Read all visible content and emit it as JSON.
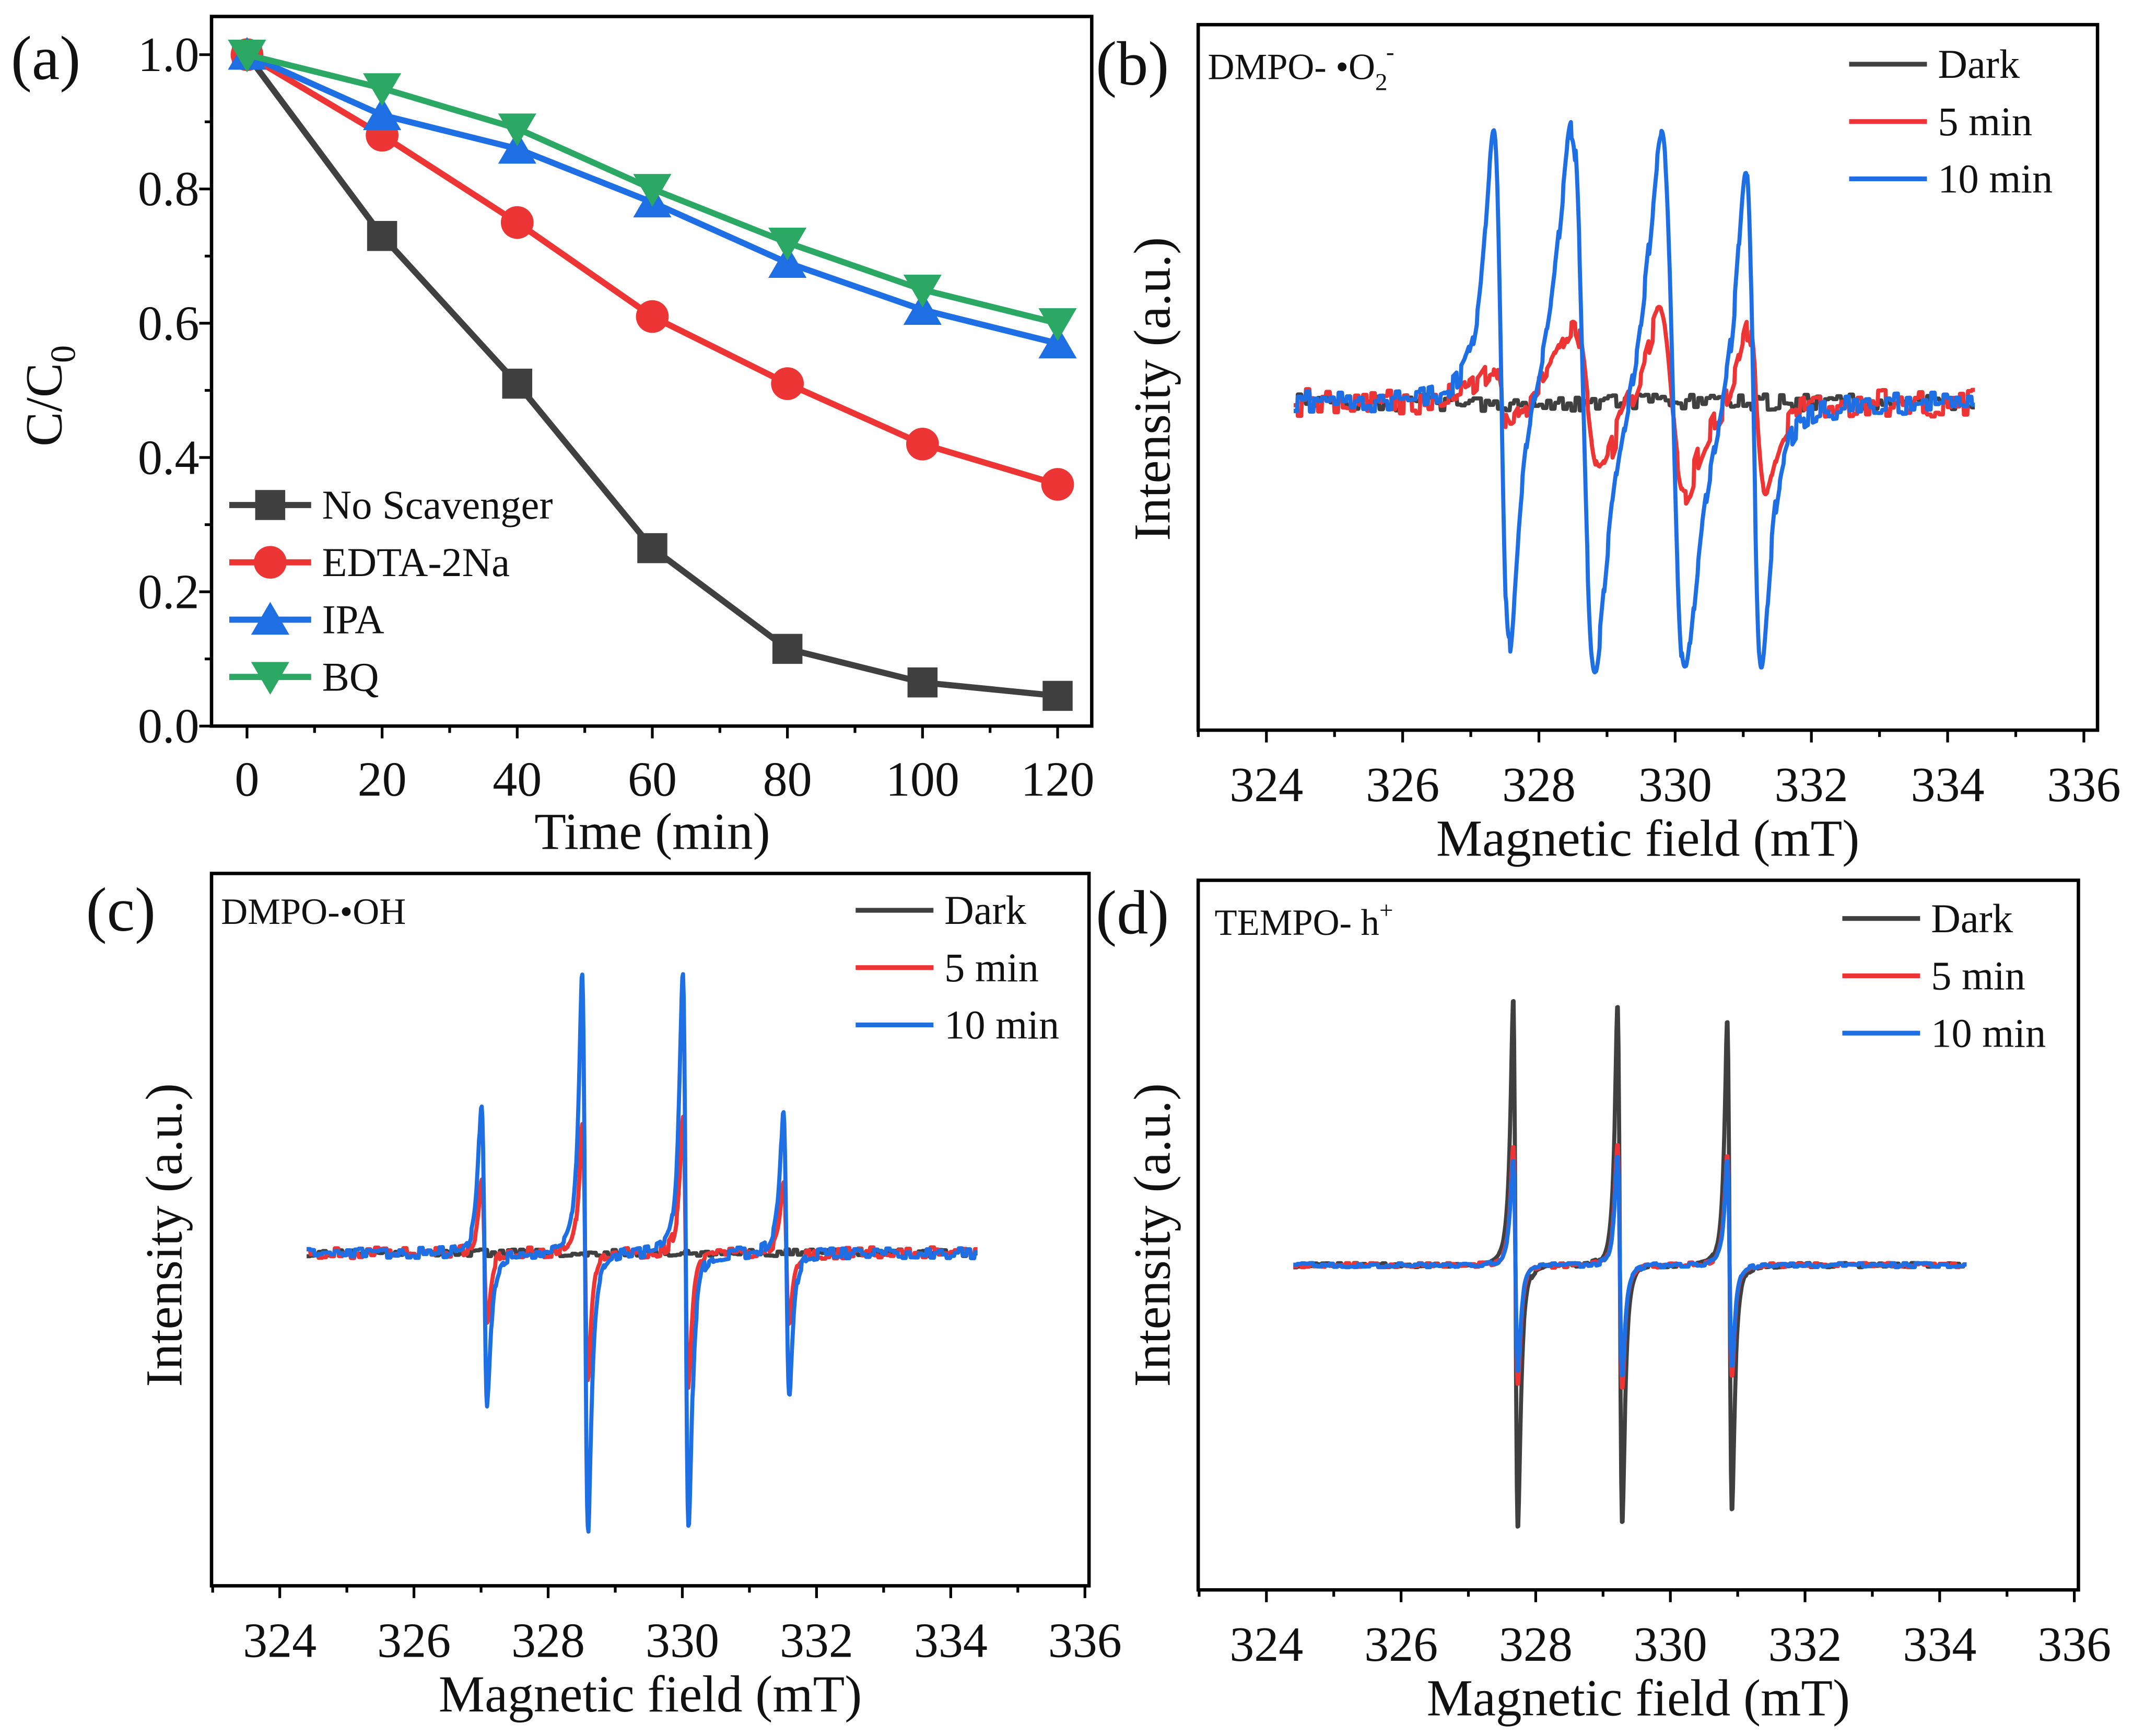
{
  "colors": {
    "dark": "#404040",
    "red": "#ee3535",
    "blue": "#1e6fe3",
    "green": "#2aa864",
    "axis": "#000000"
  },
  "chart_data": [
    {
      "panel": "(a)",
      "type": "line",
      "xlabel": "Time (min)",
      "ylabel": {
        "main": "C/C",
        "sub": "0"
      },
      "x": [
        0,
        20,
        40,
        60,
        80,
        100,
        120
      ],
      "xlim": [
        -5,
        125
      ],
      "ylim": [
        0.0,
        1.05
      ],
      "xticks": [
        "0",
        "20",
        "40",
        "60",
        "80",
        "100",
        "120"
      ],
      "yticks": [
        "0.0",
        "0.2",
        "0.4",
        "0.6",
        "0.8",
        "1.0"
      ],
      "legend_position": "bottom-left",
      "grid": false,
      "series": [
        {
          "name": "No Scavenger",
          "marker": "square",
          "color": "#404040",
          "values": [
            1.0,
            0.73,
            0.51,
            0.265,
            0.115,
            0.065,
            0.045
          ]
        },
        {
          "name": "EDTA-2Na",
          "marker": "circle",
          "color": "#ee3535",
          "values": [
            1.0,
            0.88,
            0.75,
            0.61,
            0.51,
            0.42,
            0.36
          ]
        },
        {
          "name": "IPA",
          "marker": "triangle-up",
          "color": "#1e6fe3",
          "values": [
            1.0,
            0.91,
            0.86,
            0.78,
            0.69,
            0.62,
            0.57
          ]
        },
        {
          "name": "BQ",
          "marker": "triangle-down",
          "color": "#2aa864",
          "values": [
            1.0,
            0.95,
            0.89,
            0.8,
            0.72,
            0.65,
            0.6
          ]
        }
      ]
    },
    {
      "panel": "(b)",
      "type": "line",
      "annotation": {
        "main": "DMPO- •O",
        "sub": "2",
        "sup": "-"
      },
      "xlabel": "Magnetic field (mT)",
      "ylabel": "Intensity (a.u.)",
      "xlim": [
        323,
        336
      ],
      "xticks": [
        "324",
        "326",
        "328",
        "330",
        "332",
        "334",
        "336"
      ],
      "data_range": [
        324.4,
        334.4
      ],
      "legend_position": "top-right",
      "series": [
        {
          "name": "Dark",
          "color": "#404040",
          "noise": 0.03,
          "lines": []
        },
        {
          "name": "5 min",
          "color": "#ee3535",
          "noise": 0.05,
          "lines": [
            {
              "center": 327.45,
              "width": 0.25,
              "amplitude": 0.12
            },
            {
              "center": 328.7,
              "width": 0.35,
              "amplitude": 0.28
            },
            {
              "center": 329.95,
              "width": 0.33,
              "amplitude": 0.33
            },
            {
              "center": 331.2,
              "width": 0.22,
              "amplitude": 0.3
            }
          ]
        },
        {
          "name": "10 min",
          "color": "#1e6fe3",
          "noise": 0.04,
          "lines": [
            {
              "center": 327.45,
              "width": 0.2,
              "amplitude": 0.95
            },
            {
              "center": 328.65,
              "width": 0.3,
              "amplitude": 1.0
            },
            {
              "center": 329.97,
              "width": 0.3,
              "amplitude": 1.0
            },
            {
              "center": 331.15,
              "width": 0.2,
              "amplitude": 0.92
            }
          ]
        }
      ]
    },
    {
      "panel": "(c)",
      "type": "line",
      "annotation": {
        "main": "DMPO-•OH",
        "sub": "",
        "sup": ""
      },
      "xlabel": "Magnetic field (mT)",
      "ylabel": "Intensity (a.u.)",
      "xlim": [
        323,
        336
      ],
      "xticks": [
        "324",
        "326",
        "328",
        "330",
        "332",
        "334",
        "336"
      ],
      "data_range": [
        324.4,
        334.4
      ],
      "legend_position": "top-right",
      "series": [
        {
          "name": "Dark",
          "color": "#404040",
          "noise": 0.012,
          "lines": []
        },
        {
          "name": "5 min",
          "color": "#ee3535",
          "noise": 0.02,
          "lines": [
            {
              "center": 327.05,
              "width": 0.07,
              "amplitude": 0.25
            },
            {
              "center": 328.55,
              "width": 0.07,
              "amplitude": 0.47
            },
            {
              "center": 330.05,
              "width": 0.07,
              "amplitude": 0.47
            },
            {
              "center": 331.55,
              "width": 0.07,
              "amplitude": 0.25
            }
          ]
        },
        {
          "name": "10 min",
          "color": "#1e6fe3",
          "noise": 0.02,
          "lines": [
            {
              "center": 327.05,
              "width": 0.075,
              "amplitude": 0.54
            },
            {
              "center": 328.55,
              "width": 0.075,
              "amplitude": 1.0
            },
            {
              "center": 330.05,
              "width": 0.075,
              "amplitude": 1.0
            },
            {
              "center": 331.55,
              "width": 0.075,
              "amplitude": 0.52
            }
          ]
        }
      ]
    },
    {
      "panel": "(d)",
      "type": "line",
      "annotation": {
        "main": "TEMPO- h",
        "sub": "",
        "sup": "+"
      },
      "xlabel": "Magnetic field (mT)",
      "ylabel": "Intensity (a.u.)",
      "xlim": [
        323,
        336
      ],
      "xticks": [
        "324",
        "326",
        "328",
        "330",
        "332",
        "334",
        "336"
      ],
      "data_range": [
        324.4,
        334.4
      ],
      "legend_position": "top-right",
      "series": [
        {
          "name": "Dark",
          "color": "#404040",
          "noise": 0.008,
          "lines": [
            {
              "center": 327.7,
              "width": 0.06,
              "amplitude": 1.0
            },
            {
              "center": 329.25,
              "width": 0.06,
              "amplitude": 0.98
            },
            {
              "center": 330.88,
              "width": 0.06,
              "amplitude": 0.93
            }
          ]
        },
        {
          "name": "5 min",
          "color": "#ee3535",
          "noise": 0.008,
          "lines": [
            {
              "center": 327.7,
              "width": 0.06,
              "amplitude": 0.45
            },
            {
              "center": 329.25,
              "width": 0.06,
              "amplitude": 0.46
            },
            {
              "center": 330.88,
              "width": 0.06,
              "amplitude": 0.42
            }
          ]
        },
        {
          "name": "10 min",
          "color": "#1e6fe3",
          "noise": 0.008,
          "lines": [
            {
              "center": 327.7,
              "width": 0.06,
              "amplitude": 0.4
            },
            {
              "center": 329.25,
              "width": 0.06,
              "amplitude": 0.42
            },
            {
              "center": 330.88,
              "width": 0.06,
              "amplitude": 0.39
            }
          ]
        }
      ]
    }
  ]
}
